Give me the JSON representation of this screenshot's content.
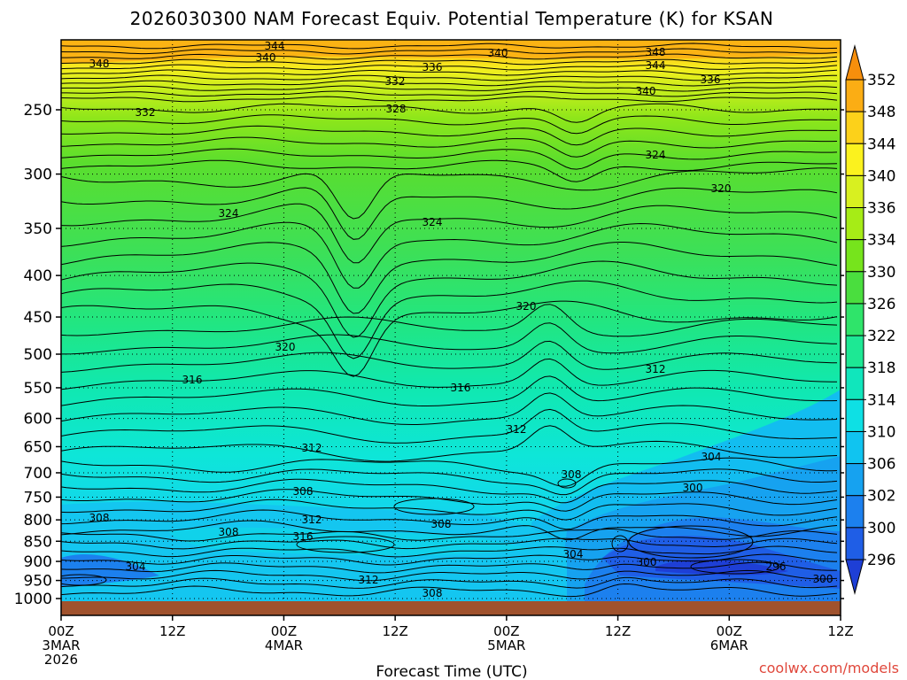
{
  "chart_data": {
    "type": "heatmap",
    "title": "2026030300 NAM Forecast Equiv. Potential Temperature (K) for KSAN",
    "xlabel": "Forecast Time (UTC)",
    "ylabel": "",
    "y_scale": "log-pressure",
    "ylim": [
      1000,
      200
    ],
    "y_ticks": [
      {
        "value": 250,
        "label": "250"
      },
      {
        "value": 300,
        "label": "300"
      },
      {
        "value": 350,
        "label": "350"
      },
      {
        "value": 400,
        "label": "400"
      },
      {
        "value": 450,
        "label": "450"
      },
      {
        "value": 500,
        "label": "500"
      },
      {
        "value": 550,
        "label": "550"
      },
      {
        "value": 600,
        "label": "600"
      },
      {
        "value": 650,
        "label": "650"
      },
      {
        "value": 700,
        "label": "700"
      },
      {
        "value": 750,
        "label": "750"
      },
      {
        "value": 800,
        "label": "800"
      },
      {
        "value": 850,
        "label": "850"
      },
      {
        "value": 900,
        "label": "900"
      },
      {
        "value": 950,
        "label": "950"
      },
      {
        "value": 1000,
        "label": "1000"
      }
    ],
    "xlim": [
      0,
      84
    ],
    "x_ticks": [
      {
        "hour": 0,
        "lines": [
          "00Z",
          "3MAR",
          "2026"
        ]
      },
      {
        "hour": 12,
        "lines": [
          "12Z"
        ]
      },
      {
        "hour": 24,
        "lines": [
          "00Z",
          "4MAR"
        ]
      },
      {
        "hour": 36,
        "lines": [
          "12Z"
        ]
      },
      {
        "hour": 48,
        "lines": [
          "00Z",
          "5MAR"
        ]
      },
      {
        "hour": 60,
        "lines": [
          "12Z"
        ]
      },
      {
        "hour": 72,
        "lines": [
          "00Z",
          "6MAR"
        ]
      },
      {
        "hour": 84,
        "lines": [
          "12Z"
        ]
      }
    ],
    "colorbar": {
      "levels": [
        296,
        300,
        302,
        306,
        310,
        314,
        318,
        322,
        326,
        330,
        334,
        336,
        340,
        344,
        348,
        352
      ],
      "labels": [
        "296",
        "300",
        "302",
        "306",
        "310",
        "314",
        "318",
        "322",
        "326",
        "330",
        "334",
        "336",
        "340",
        "344",
        "348",
        "352"
      ],
      "colors": [
        "#1e3fd6",
        "#1f5ee6",
        "#1c80ee",
        "#16a2f0",
        "#10c4f0",
        "#0ee0e4",
        "#10e6bc",
        "#1de894",
        "#2fe46a",
        "#4ade3e",
        "#76e41c",
        "#a6ec16",
        "#d8f020",
        "#fbf21e",
        "#fcd11a",
        "#fbad14",
        "#f78f0c"
      ]
    },
    "isotherm_profiles": [
      {
        "hour": 0,
        "theta": {
          "250": 332,
          "300": 326,
          "400": 324,
          "500": 320,
          "600": 314,
          "700": 310,
          "800": 308,
          "900": 306,
          "1000": 304
        }
      },
      {
        "hour": 24,
        "theta": {
          "250": 330,
          "300": 326,
          "400": 324,
          "500": 320,
          "600": 316,
          "700": 312,
          "800": 308,
          "900": 312,
          "1000": 310
        }
      },
      {
        "hour": 48,
        "theta": {
          "250": 330,
          "300": 326,
          "400": 322,
          "500": 320,
          "600": 316,
          "700": 312,
          "800": 308,
          "900": 308,
          "1000": 308
        }
      },
      {
        "hour": 72,
        "theta": {
          "250": 336,
          "300": 324,
          "400": 320,
          "500": 316,
          "600": 310,
          "700": 304,
          "800": 300,
          "900": 298,
          "1000": 300
        }
      }
    ],
    "contour_labels": [
      "344",
      "340",
      "348",
      "336",
      "340",
      "348",
      "344",
      "332",
      "336",
      "340",
      "332",
      "328",
      "324",
      "320",
      "324",
      "324",
      "320",
      "320",
      "312",
      "316",
      "316",
      "312",
      "312",
      "304",
      "300",
      "308",
      "308",
      "308",
      "312",
      "308",
      "308",
      "316",
      "304",
      "304",
      "300",
      "296",
      "300",
      "312",
      "308"
    ],
    "ground_color": "#a0522d",
    "grid": true
  },
  "watermark": "coolwx.com/models"
}
